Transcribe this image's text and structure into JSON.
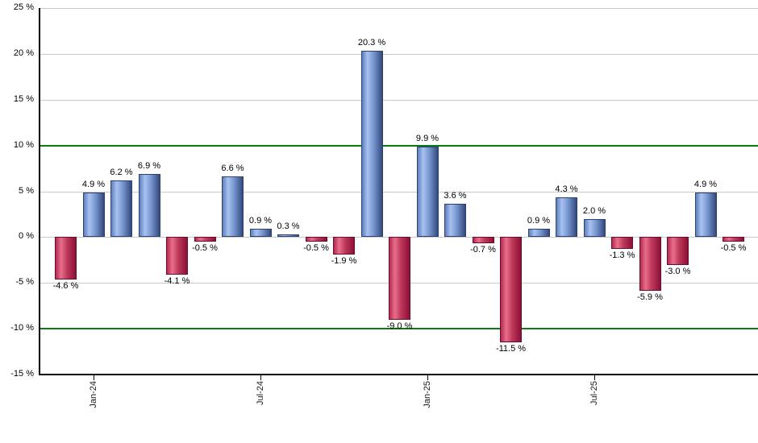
{
  "chart_data": {
    "type": "bar",
    "title": "",
    "xlabel": "",
    "ylabel": "",
    "ylim": [
      -15,
      25
    ],
    "y_tick_step": 5,
    "y_tick_labels": [
      "25 %",
      "20 %",
      "15 %",
      "10 %",
      "5 %",
      "0 %",
      "-5 %",
      "-10 %",
      "-15 %"
    ],
    "y_tick_values": [
      25,
      20,
      15,
      10,
      5,
      0,
      -5,
      -10,
      -15
    ],
    "threshold_values": [
      10,
      -10
    ],
    "grid": true,
    "legend": "none",
    "values": [
      -4.6,
      4.9,
      6.2,
      6.9,
      -4.1,
      -0.5,
      6.6,
      0.9,
      0.3,
      -0.5,
      -1.9,
      20.3,
      -9.0,
      9.9,
      3.6,
      -0.7,
      -11.5,
      0.9,
      4.3,
      2.0,
      -1.3,
      -5.9,
      -3.0,
      4.9,
      -0.5
    ],
    "bar_value_labels": [
      "-4.6 %",
      "4.9 %",
      "6.2 %",
      "6.9 %",
      "-4.1 %",
      "-0.5 %",
      "6.6 %",
      "0.9 %",
      "0.3 %",
      "-0.5 %",
      "-1.9 %",
      "20.3 %",
      "-9.0 %",
      "9.9 %",
      "3.6 %",
      "-0.7 %",
      "-11.5 %",
      "0.9 %",
      "4.3 %",
      "2.0 %",
      "-1.3 %",
      "-5.9 %",
      "-3.0 %",
      "4.9 %",
      "-0.5 %"
    ],
    "x_tick_labels": [
      {
        "label": "Jan-24",
        "bar_index": 1
      },
      {
        "label": "Jul-24",
        "bar_index": 7
      },
      {
        "label": "Jan-25",
        "bar_index": 13
      },
      {
        "label": "Jul-25",
        "bar_index": 19
      }
    ],
    "colors": {
      "positive_bar_mid": "#7b9ad4",
      "positive_bar_light": "#a8c2f0",
      "positive_bar_dark": "#33497c",
      "negative_bar_mid": "#c03a5c",
      "negative_bar_light": "#e86f8c",
      "negative_bar_dark": "#8c1038",
      "gridline": "#c9c9c9",
      "threshold_line": "#0c7a14",
      "axis": "#000000",
      "label_text": "#000000",
      "background": "#ffffff"
    }
  }
}
